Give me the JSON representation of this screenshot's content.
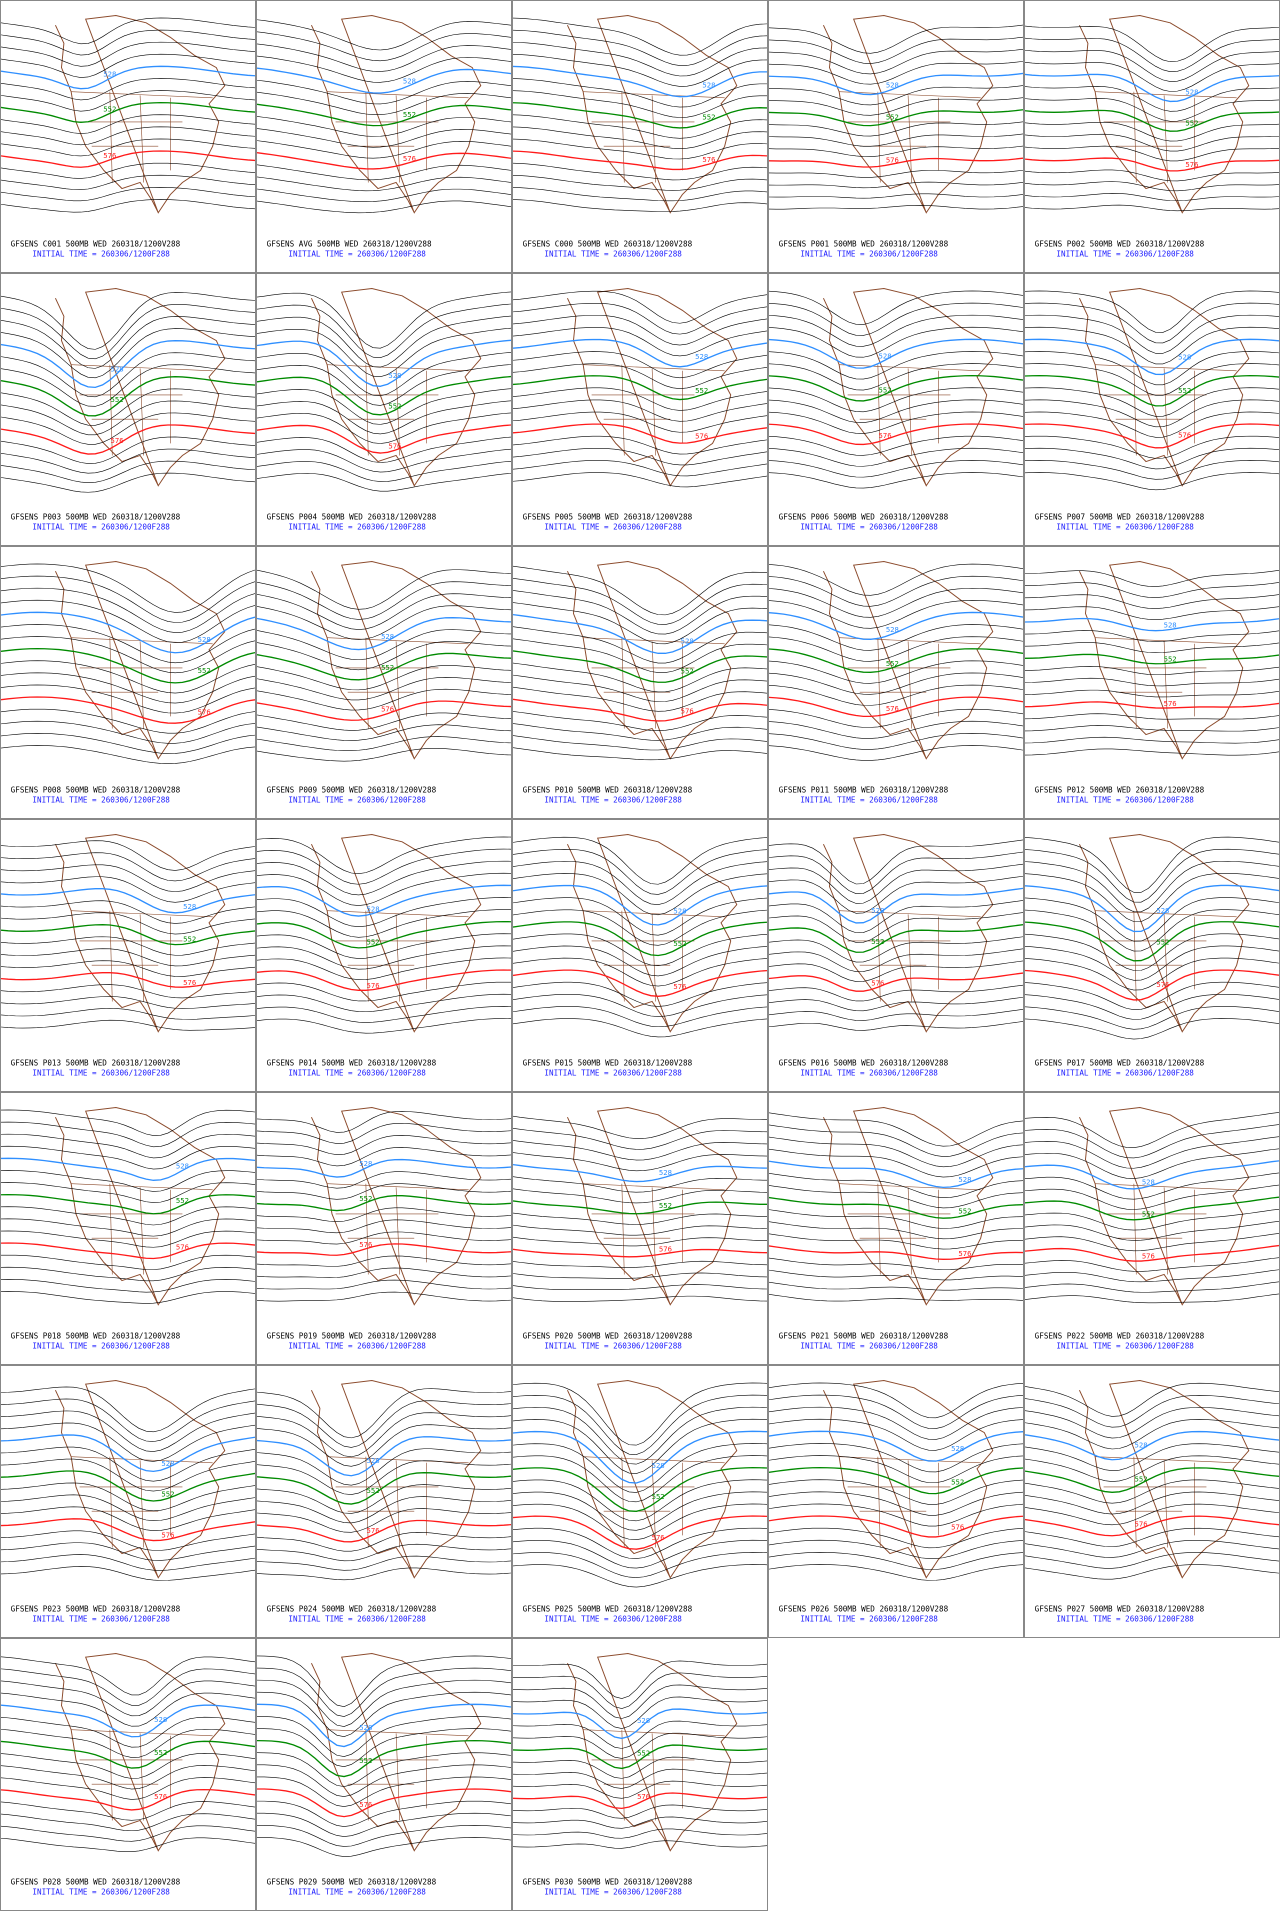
{
  "contour_levels": [
    {
      "value": 528,
      "color": "#2f8fff"
    },
    {
      "value": 552,
      "color": "#008a00"
    },
    {
      "value": 576,
      "color": "#ff1a1a"
    }
  ],
  "panels": [
    {
      "title": "GFSENS C001 500MB WED 260318/1200V288",
      "init": "INITIAL TIME = 260306/1200F288"
    },
    {
      "title": "GFSENS AVG 500MB WED 260318/1200V288",
      "init": "INITIAL TIME = 260306/1200F288"
    },
    {
      "title": "GFSENS C000 500MB WED 260318/1200V288",
      "init": "INITIAL TIME = 260306/1200F288"
    },
    {
      "title": "GFSENS P001 500MB WED 260318/1200V288",
      "init": "INITIAL TIME = 260306/1200F288"
    },
    {
      "title": "GFSENS P002 500MB WED 260318/1200V288",
      "init": "INITIAL TIME = 260306/1200F288"
    },
    {
      "title": "GFSENS P003 500MB WED 260318/1200V288",
      "init": "INITIAL TIME = 260306/1200F288"
    },
    {
      "title": "GFSENS P004 500MB WED 260318/1200V288",
      "init": "INITIAL TIME = 260306/1200F288"
    },
    {
      "title": "GFSENS P005 500MB WED 260318/1200V288",
      "init": "INITIAL TIME = 260306/1200F288"
    },
    {
      "title": "GFSENS P006 500MB WED 260318/1200V288",
      "init": "INITIAL TIME = 260306/1200F288"
    },
    {
      "title": "GFSENS P007 500MB WED 260318/1200V288",
      "init": "INITIAL TIME = 260306/1200F288"
    },
    {
      "title": "GFSENS P008 500MB WED 260318/1200V288",
      "init": "INITIAL TIME = 260306/1200F288"
    },
    {
      "title": "GFSENS P009 500MB WED 260318/1200V288",
      "init": "INITIAL TIME = 260306/1200F288"
    },
    {
      "title": "GFSENS P010 500MB WED 260318/1200V288",
      "init": "INITIAL TIME = 260306/1200F288"
    },
    {
      "title": "GFSENS P011 500MB WED 260318/1200V288",
      "init": "INITIAL TIME = 260306/1200F288"
    },
    {
      "title": "GFSENS P012 500MB WED 260318/1200V288",
      "init": "INITIAL TIME = 260306/1200F288"
    },
    {
      "title": "GFSENS P013 500MB WED 260318/1200V288",
      "init": "INITIAL TIME = 260306/1200F288"
    },
    {
      "title": "GFSENS P014 500MB WED 260318/1200V288",
      "init": "INITIAL TIME = 260306/1200F288"
    },
    {
      "title": "GFSENS P015 500MB WED 260318/1200V288",
      "init": "INITIAL TIME = 260306/1200F288"
    },
    {
      "title": "GFSENS P016 500MB WED 260318/1200V288",
      "init": "INITIAL TIME = 260306/1200F288"
    },
    {
      "title": "GFSENS P017 500MB WED 260318/1200V288",
      "init": "INITIAL TIME = 260306/1200F288"
    },
    {
      "title": "GFSENS P018 500MB WED 260318/1200V288",
      "init": "INITIAL TIME = 260306/1200F288"
    },
    {
      "title": "GFSENS P019 500MB WED 260318/1200V288",
      "init": "INITIAL TIME = 260306/1200F288"
    },
    {
      "title": "GFSENS P020 500MB WED 260318/1200V288",
      "init": "INITIAL TIME = 260306/1200F288"
    },
    {
      "title": "GFSENS P021 500MB WED 260318/1200V288",
      "init": "INITIAL TIME = 260306/1200F288"
    },
    {
      "title": "GFSENS P022 500MB WED 260318/1200V288",
      "init": "INITIAL TIME = 260306/1200F288"
    },
    {
      "title": "GFSENS P023 500MB WED 260318/1200V288",
      "init": "INITIAL TIME = 260306/1200F288"
    },
    {
      "title": "GFSENS P024 500MB WED 260318/1200V288",
      "init": "INITIAL TIME = 260306/1200F288"
    },
    {
      "title": "GFSENS P025 500MB WED 260318/1200V288",
      "init": "INITIAL TIME = 260306/1200F288"
    },
    {
      "title": "GFSENS P026 500MB WED 260318/1200V288",
      "init": "INITIAL TIME = 260306/1200F288"
    },
    {
      "title": "GFSENS P027 500MB WED 260318/1200V288",
      "init": "INITIAL TIME = 260306/1200F288"
    },
    {
      "title": "GFSENS P028 500MB WED 260318/1200V288",
      "init": "INITIAL TIME = 260306/1200F288"
    },
    {
      "title": "GFSENS P029 500MB WED 260318/1200V288",
      "init": "INITIAL TIME = 260306/1200F288"
    },
    {
      "title": "GFSENS P030 500MB WED 260318/1200V288",
      "init": "INITIAL TIME = 260306/1200F288"
    }
  ]
}
